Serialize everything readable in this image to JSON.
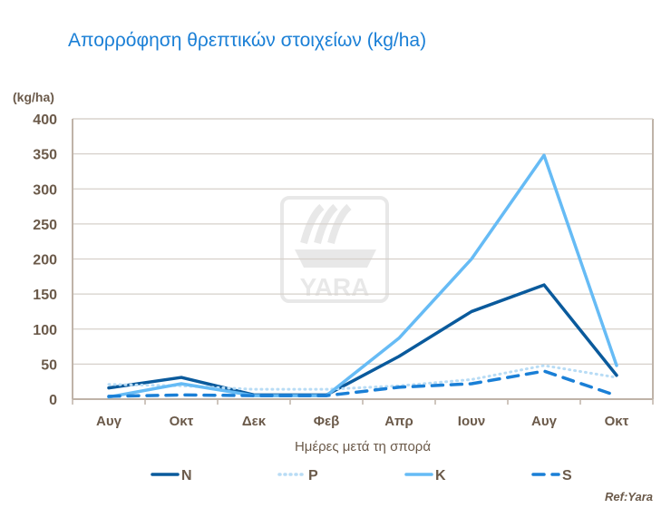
{
  "chart_data": {
    "type": "line",
    "title": "Απορρόφηση θρεπτικών στοιχείων (kg/ha)",
    "ylabel": "(kg/ha)",
    "xlabel": "Ημέρες μετά τη σπορά",
    "categories": [
      "Αυγ",
      "Οκτ",
      "Δεκ",
      "Φεβ",
      "Απρ",
      "Ιουν",
      "Αυγ",
      "Οκτ"
    ],
    "ylim": [
      0,
      400
    ],
    "yticks": [
      0,
      50,
      100,
      150,
      200,
      250,
      300,
      350,
      400
    ],
    "grid": true,
    "legend_position": "bottom",
    "series": [
      {
        "name": "N",
        "color": "#0a5a9c",
        "style": "solid",
        "values": [
          16,
          31,
          6,
          6,
          61,
          125,
          163,
          34
        ]
      },
      {
        "name": "P",
        "color": "#b8dcf5",
        "style": "dotted",
        "values": [
          21,
          19,
          14,
          14,
          19,
          28,
          48,
          31
        ]
      },
      {
        "name": "K",
        "color": "#66bbf5",
        "style": "solid",
        "values": [
          3,
          22,
          5,
          5,
          87,
          200,
          348,
          48
        ]
      },
      {
        "name": "S",
        "color": "#1a7fd6",
        "style": "dashed",
        "values": [
          4,
          6,
          5,
          5,
          17,
          22,
          40,
          5
        ]
      }
    ],
    "annotation": "Ref:Yara",
    "watermark": "YARA"
  }
}
